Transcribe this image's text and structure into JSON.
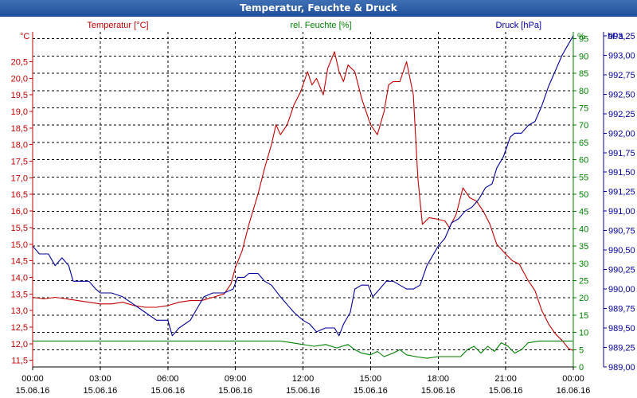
{
  "window": {
    "title": "Temperatur, Feuchte & Druck"
  },
  "chart_data": {
    "type": "line",
    "title": "Temperatur, Feuchte & Druck",
    "colors": {
      "temperature": "#c00000",
      "humidity": "#008000",
      "pressure": "#000099",
      "axis": "#000000"
    },
    "x_ticks": [
      {
        "h": 0,
        "time": "00:00",
        "date": "15.06.16"
      },
      {
        "h": 3,
        "time": "03:00",
        "date": "15.06.16"
      },
      {
        "h": 6,
        "time": "06:00",
        "date": "15.06.16"
      },
      {
        "h": 9,
        "time": "09:00",
        "date": "15.06.16"
      },
      {
        "h": 12,
        "time": "12:00",
        "date": "15.06.16"
      },
      {
        "h": 15,
        "time": "15:00",
        "date": "15.06.16"
      },
      {
        "h": 18,
        "time": "18:00",
        "date": "15.06.16"
      },
      {
        "h": 21,
        "time": "21:00",
        "date": "15.06.16"
      },
      {
        "h": 24,
        "time": "00:00",
        "date": "16.06.16"
      }
    ],
    "x_range": [
      0,
      24
    ],
    "axes": {
      "temperature": {
        "label": "Temperatur [°C]",
        "unit": "°C",
        "range": [
          11.3,
          21.4
        ],
        "ticks": [
          "11,5",
          "12,0",
          "12,5",
          "13,0",
          "13,5",
          "14,0",
          "14,5",
          "15,0",
          "15,5",
          "16,0",
          "16,5",
          "17,0",
          "17,5",
          "18,0",
          "18,5",
          "19,0",
          "19,5",
          "20,0",
          "20,5"
        ]
      },
      "humidity": {
        "label": "rel. Feuchte [%]",
        "unit": "%",
        "range": [
          0,
          97
        ],
        "ticks": [
          "0",
          "5",
          "10",
          "15",
          "20",
          "25",
          "30",
          "35",
          "40",
          "45",
          "50",
          "55",
          "60",
          "65",
          "70",
          "75",
          "80",
          "85",
          "90",
          "95"
        ]
      },
      "pressure": {
        "label": "Druck [hPa]",
        "unit": "hPa",
        "range": [
          989.0,
          993.3
        ],
        "ticks": [
          "989,00",
          "989,25",
          "989,50",
          "989,75",
          "990,00",
          "990,25",
          "990,50",
          "990,75",
          "991,00",
          "991,25",
          "991,50",
          "991,75",
          "992,00",
          "992,25",
          "992,50",
          "992,75",
          "993,00",
          "993,25"
        ]
      }
    },
    "series": [
      {
        "name": "Temperatur",
        "unit": "°C",
        "color_key": "temperature",
        "axis": "temperature",
        "points": [
          [
            0,
            13.4
          ],
          [
            0.5,
            13.35
          ],
          [
            1,
            13.4
          ],
          [
            1.5,
            13.35
          ],
          [
            2,
            13.3
          ],
          [
            2.5,
            13.25
          ],
          [
            3,
            13.2
          ],
          [
            3.5,
            13.2
          ],
          [
            4,
            13.25
          ],
          [
            4.5,
            13.15
          ],
          [
            5,
            13.1
          ],
          [
            5.5,
            13.1
          ],
          [
            6,
            13.15
          ],
          [
            6.5,
            13.25
          ],
          [
            7,
            13.3
          ],
          [
            7.5,
            13.3
          ],
          [
            8,
            13.4
          ],
          [
            8.5,
            13.5
          ],
          [
            8.8,
            13.8
          ],
          [
            9,
            14.3
          ],
          [
            9.3,
            14.8
          ],
          [
            9.6,
            15.6
          ],
          [
            10,
            16.5
          ],
          [
            10.3,
            17.3
          ],
          [
            10.6,
            18.0
          ],
          [
            10.8,
            18.6
          ],
          [
            11,
            18.3
          ],
          [
            11.3,
            18.6
          ],
          [
            11.6,
            19.2
          ],
          [
            11.9,
            19.6
          ],
          [
            12.2,
            20.2
          ],
          [
            12.4,
            19.8
          ],
          [
            12.6,
            20.0
          ],
          [
            12.9,
            19.5
          ],
          [
            13.1,
            20.3
          ],
          [
            13.4,
            20.8
          ],
          [
            13.6,
            20.2
          ],
          [
            13.8,
            19.9
          ],
          [
            14,
            20.4
          ],
          [
            14.3,
            20.2
          ],
          [
            14.6,
            19.4
          ],
          [
            15,
            18.6
          ],
          [
            15.3,
            18.3
          ],
          [
            15.6,
            19.0
          ],
          [
            15.8,
            19.8
          ],
          [
            16,
            19.9
          ],
          [
            16.3,
            19.9
          ],
          [
            16.6,
            20.5
          ],
          [
            16.9,
            19.5
          ],
          [
            17.1,
            17.0
          ],
          [
            17.3,
            15.6
          ],
          [
            17.6,
            15.8
          ],
          [
            18,
            15.75
          ],
          [
            18.3,
            15.7
          ],
          [
            18.5,
            15.5
          ],
          [
            18.8,
            15.9
          ],
          [
            19.1,
            16.7
          ],
          [
            19.4,
            16.4
          ],
          [
            19.7,
            16.3
          ],
          [
            20,
            16.0
          ],
          [
            20.3,
            15.6
          ],
          [
            20.6,
            15.0
          ],
          [
            21,
            14.7
          ],
          [
            21.3,
            14.5
          ],
          [
            21.6,
            14.4
          ],
          [
            22,
            13.9
          ],
          [
            22.3,
            13.6
          ],
          [
            22.6,
            13.0
          ],
          [
            22.9,
            12.6
          ],
          [
            23.2,
            12.3
          ],
          [
            23.5,
            12.1
          ],
          [
            23.8,
            11.85
          ],
          [
            24,
            11.8
          ]
        ]
      },
      {
        "name": "rel. Feuchte",
        "unit": "%",
        "color_key": "humidity",
        "axis": "humidity",
        "points": [
          [
            0,
            7.5
          ],
          [
            1,
            7.5
          ],
          [
            2,
            7.5
          ],
          [
            3,
            7.5
          ],
          [
            4,
            7.5
          ],
          [
            5,
            7.5
          ],
          [
            6,
            7.5
          ],
          [
            7,
            7.5
          ],
          [
            8,
            7.5
          ],
          [
            9,
            7.5
          ],
          [
            10,
            7.5
          ],
          [
            11,
            7.5
          ],
          [
            11.5,
            7
          ],
          [
            12,
            6.5
          ],
          [
            12.5,
            6
          ],
          [
            13,
            6.5
          ],
          [
            13.5,
            5.5
          ],
          [
            14,
            6.5
          ],
          [
            14.3,
            5
          ],
          [
            14.6,
            4
          ],
          [
            15,
            3.5
          ],
          [
            15.3,
            4.5
          ],
          [
            15.6,
            3
          ],
          [
            16,
            4
          ],
          [
            16.3,
            5
          ],
          [
            16.6,
            3.5
          ],
          [
            17,
            3
          ],
          [
            17.5,
            2.5
          ],
          [
            18,
            3
          ],
          [
            18.5,
            3
          ],
          [
            19,
            3
          ],
          [
            19.3,
            5
          ],
          [
            19.6,
            6
          ],
          [
            19.9,
            4
          ],
          [
            20.2,
            6
          ],
          [
            20.5,
            4.5
          ],
          [
            20.8,
            7
          ],
          [
            21.1,
            6
          ],
          [
            21.4,
            4
          ],
          [
            21.7,
            5
          ],
          [
            22,
            7
          ],
          [
            22.5,
            7.5
          ],
          [
            23,
            7.5
          ],
          [
            24,
            7.5
          ]
        ]
      },
      {
        "name": "Druck",
        "unit": "hPa",
        "color_key": "pressure",
        "axis": "pressure",
        "points": [
          [
            0,
            990.55
          ],
          [
            0.3,
            990.45
          ],
          [
            0.7,
            990.45
          ],
          [
            1,
            990.3
          ],
          [
            1.3,
            990.4
          ],
          [
            1.6,
            990.3
          ],
          [
            1.8,
            990.1
          ],
          [
            2.5,
            990.1
          ],
          [
            2.8,
            990.0
          ],
          [
            3,
            989.95
          ],
          [
            3.5,
            989.95
          ],
          [
            4,
            989.9
          ],
          [
            4.5,
            989.8
          ],
          [
            5,
            989.7
          ],
          [
            5.5,
            989.6
          ],
          [
            6,
            989.6
          ],
          [
            6.2,
            989.4
          ],
          [
            6.5,
            989.5
          ],
          [
            7,
            989.6
          ],
          [
            7.3,
            989.75
          ],
          [
            7.6,
            989.9
          ],
          [
            8,
            989.95
          ],
          [
            8.5,
            989.95
          ],
          [
            8.9,
            990.0
          ],
          [
            9.1,
            990.15
          ],
          [
            9.4,
            990.15
          ],
          [
            9.6,
            990.2
          ],
          [
            10,
            990.2
          ],
          [
            10.3,
            990.1
          ],
          [
            10.6,
            990.05
          ],
          [
            11,
            989.9
          ],
          [
            11.3,
            989.8
          ],
          [
            11.6,
            989.7
          ],
          [
            12,
            989.6
          ],
          [
            12.3,
            989.55
          ],
          [
            12.6,
            989.45
          ],
          [
            13,
            989.5
          ],
          [
            13.4,
            989.5
          ],
          [
            13.6,
            989.4
          ],
          [
            13.8,
            989.55
          ],
          [
            14.1,
            989.7
          ],
          [
            14.3,
            990.0
          ],
          [
            14.6,
            990.05
          ],
          [
            14.9,
            990.05
          ],
          [
            15.1,
            989.9
          ],
          [
            15.4,
            990.0
          ],
          [
            15.7,
            990.1
          ],
          [
            16,
            990.1
          ],
          [
            16.3,
            990.05
          ],
          [
            16.6,
            990.0
          ],
          [
            16.9,
            990.0
          ],
          [
            17.2,
            990.05
          ],
          [
            17.5,
            990.3
          ],
          [
            17.8,
            990.45
          ],
          [
            18,
            990.55
          ],
          [
            18.3,
            990.65
          ],
          [
            18.6,
            990.85
          ],
          [
            18.9,
            990.9
          ],
          [
            19.2,
            991.0
          ],
          [
            19.5,
            991.05
          ],
          [
            19.8,
            991.15
          ],
          [
            20.1,
            991.3
          ],
          [
            20.4,
            991.35
          ],
          [
            20.6,
            991.55
          ],
          [
            20.9,
            991.7
          ],
          [
            21.2,
            991.95
          ],
          [
            21.4,
            992.0
          ],
          [
            21.7,
            992.0
          ],
          [
            22,
            992.1
          ],
          [
            22.3,
            992.15
          ],
          [
            22.6,
            992.35
          ],
          [
            22.9,
            992.6
          ],
          [
            23.2,
            992.8
          ],
          [
            23.5,
            993.0
          ],
          [
            23.8,
            993.15
          ],
          [
            24,
            993.25
          ]
        ]
      }
    ]
  }
}
